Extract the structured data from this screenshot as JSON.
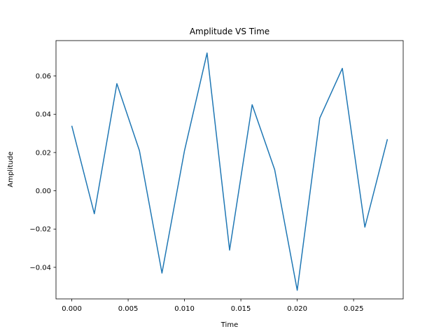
{
  "chart_data": {
    "type": "line",
    "title": "Amplitude VS Time",
    "xlabel": "Time",
    "ylabel": "Amplitude",
    "xlim": [
      -0.0014,
      0.0294
    ],
    "ylim": [
      -0.0565,
      0.0785
    ],
    "grid": false,
    "line_color": "#1f77b4",
    "xticks": [
      0.0,
      0.005,
      0.01,
      0.015,
      0.02,
      0.025
    ],
    "xtick_labels": [
      "0.000",
      "0.005",
      "0.010",
      "0.015",
      "0.020",
      "0.025"
    ],
    "yticks": [
      -0.04,
      -0.02,
      0.0,
      0.02,
      0.04,
      0.06
    ],
    "ytick_labels": [
      "−0.04",
      "−0.02",
      "0.00",
      "0.02",
      "0.04",
      "0.06"
    ],
    "series": [
      {
        "x": [
          0.0,
          0.002,
          0.004,
          0.006,
          0.008,
          0.01,
          0.012,
          0.014,
          0.016,
          0.018,
          0.02,
          0.022,
          0.024,
          0.026,
          0.028
        ],
        "values": [
          0.034,
          -0.012,
          0.056,
          0.021,
          -0.043,
          0.021,
          0.072,
          -0.031,
          0.045,
          0.011,
          -0.052,
          0.038,
          0.064,
          -0.019,
          0.027
        ]
      }
    ]
  }
}
